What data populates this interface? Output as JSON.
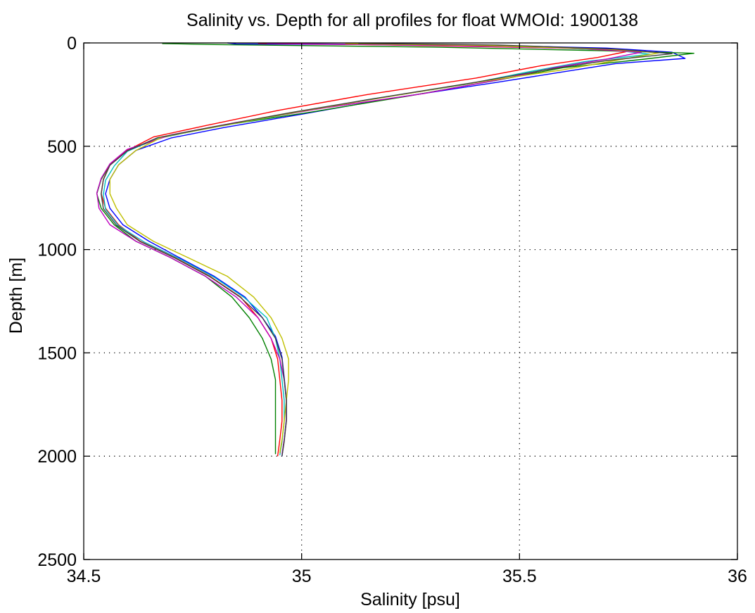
{
  "chart_data": {
    "type": "line",
    "title": "Salinity vs. Depth for all profiles for float WMOId: 1900138",
    "xlabel": "Salinity [psu]",
    "ylabel": "Depth [m]",
    "xlim": [
      34.5,
      36
    ],
    "ylim": [
      0,
      2500
    ],
    "y_reversed": true,
    "grid": true,
    "x_ticks": [
      34.5,
      35,
      35.5,
      36
    ],
    "x_tick_labels": [
      "34.5",
      "35",
      "35.5",
      "36"
    ],
    "y_ticks": [
      0,
      500,
      1000,
      1500,
      2000,
      2500
    ],
    "y_tick_labels": [
      "0",
      "500",
      "1000",
      "1500",
      "2000",
      "2500"
    ],
    "series": [
      {
        "color": "#0000ff",
        "points": [
          [
            34.83,
            0
          ],
          [
            34.85,
            5
          ],
          [
            35.4,
            10
          ],
          [
            35.7,
            25
          ],
          [
            35.85,
            45
          ],
          [
            35.88,
            75
          ],
          [
            35.72,
            100
          ],
          [
            35.6,
            140
          ],
          [
            35.45,
            190
          ],
          [
            35.2,
            270
          ],
          [
            35.0,
            345
          ],
          [
            34.82,
            410
          ],
          [
            34.7,
            460
          ],
          [
            34.62,
            520
          ],
          [
            34.58,
            590
          ],
          [
            34.56,
            660
          ],
          [
            34.55,
            730
          ],
          [
            34.56,
            800
          ],
          [
            34.59,
            880
          ],
          [
            34.65,
            960
          ],
          [
            34.72,
            1040
          ],
          [
            34.8,
            1130
          ],
          [
            34.87,
            1230
          ],
          [
            34.91,
            1330
          ],
          [
            34.94,
            1420
          ],
          [
            34.955,
            1520
          ],
          [
            34.96,
            1620
          ],
          [
            34.965,
            1720
          ],
          [
            34.965,
            1820
          ],
          [
            34.96,
            1920
          ],
          [
            34.955,
            2000
          ]
        ]
      },
      {
        "color": "#008000",
        "points": [
          [
            34.68,
            3
          ],
          [
            34.8,
            8
          ],
          [
            35.3,
            20
          ],
          [
            35.7,
            38
          ],
          [
            35.9,
            50
          ],
          [
            35.78,
            80
          ],
          [
            35.6,
            120
          ],
          [
            35.45,
            180
          ],
          [
            35.25,
            255
          ],
          [
            35.02,
            335
          ],
          [
            34.8,
            405
          ],
          [
            34.68,
            458
          ],
          [
            34.6,
            520
          ],
          [
            34.56,
            590
          ],
          [
            34.54,
            660
          ],
          [
            34.53,
            730
          ],
          [
            34.54,
            800
          ],
          [
            34.57,
            880
          ],
          [
            34.62,
            960
          ],
          [
            34.7,
            1040
          ],
          [
            34.78,
            1130
          ],
          [
            34.84,
            1230
          ],
          [
            34.88,
            1330
          ],
          [
            34.91,
            1430
          ],
          [
            34.93,
            1530
          ],
          [
            34.94,
            1630
          ],
          [
            34.94,
            1730
          ],
          [
            34.94,
            1830
          ],
          [
            34.94,
            1920
          ],
          [
            34.94,
            1990
          ]
        ]
      },
      {
        "color": "#ff0000",
        "points": [
          [
            34.9,
            2
          ],
          [
            35.2,
            10
          ],
          [
            35.6,
            25
          ],
          [
            35.75,
            40
          ],
          [
            35.68,
            70
          ],
          [
            35.55,
            110
          ],
          [
            35.4,
            170
          ],
          [
            35.15,
            250
          ],
          [
            34.95,
            325
          ],
          [
            34.78,
            400
          ],
          [
            34.66,
            455
          ],
          [
            34.6,
            520
          ],
          [
            34.56,
            590
          ],
          [
            34.545,
            660
          ],
          [
            34.54,
            730
          ],
          [
            34.55,
            800
          ],
          [
            34.58,
            880
          ],
          [
            34.63,
            960
          ],
          [
            34.71,
            1040
          ],
          [
            34.79,
            1130
          ],
          [
            34.86,
            1230
          ],
          [
            34.9,
            1330
          ],
          [
            34.93,
            1430
          ],
          [
            34.945,
            1530
          ],
          [
            34.95,
            1630
          ],
          [
            34.955,
            1730
          ],
          [
            34.955,
            1830
          ],
          [
            34.95,
            1920
          ],
          [
            34.945,
            2000
          ]
        ]
      },
      {
        "color": "#00bfbf",
        "points": [
          [
            34.95,
            1
          ],
          [
            35.1,
            6
          ],
          [
            35.5,
            18
          ],
          [
            35.72,
            35
          ],
          [
            35.8,
            55
          ],
          [
            35.65,
            90
          ],
          [
            35.52,
            140
          ],
          [
            35.38,
            200
          ],
          [
            35.15,
            275
          ],
          [
            34.98,
            340
          ],
          [
            34.8,
            408
          ],
          [
            34.67,
            460
          ],
          [
            34.6,
            525
          ],
          [
            34.57,
            595
          ],
          [
            34.55,
            665
          ],
          [
            34.545,
            735
          ],
          [
            34.55,
            805
          ],
          [
            34.58,
            885
          ],
          [
            34.64,
            965
          ],
          [
            34.72,
            1045
          ],
          [
            34.8,
            1135
          ],
          [
            34.87,
            1235
          ],
          [
            34.92,
            1330
          ],
          [
            34.94,
            1430
          ],
          [
            34.95,
            1530
          ],
          [
            34.955,
            1630
          ],
          [
            34.96,
            1730
          ],
          [
            34.96,
            1830
          ],
          [
            34.955,
            1930
          ],
          [
            34.95,
            1995
          ]
        ]
      },
      {
        "color": "#bf00bf",
        "points": [
          [
            34.92,
            2
          ],
          [
            35.3,
            12
          ],
          [
            35.65,
            28
          ],
          [
            35.78,
            45
          ],
          [
            35.7,
            78
          ],
          [
            35.58,
            120
          ],
          [
            35.46,
            175
          ],
          [
            35.28,
            245
          ],
          [
            35.05,
            315
          ],
          [
            34.85,
            385
          ],
          [
            34.7,
            445
          ],
          [
            34.6,
            515
          ],
          [
            34.56,
            585
          ],
          [
            34.54,
            655
          ],
          [
            34.53,
            725
          ],
          [
            34.535,
            800
          ],
          [
            34.56,
            880
          ],
          [
            34.62,
            960
          ],
          [
            34.7,
            1040
          ],
          [
            34.78,
            1130
          ],
          [
            34.85,
            1230
          ],
          [
            34.9,
            1330
          ],
          [
            34.93,
            1430
          ],
          [
            34.95,
            1530
          ],
          [
            34.96,
            1630
          ],
          [
            34.965,
            1730
          ],
          [
            34.965,
            1830
          ],
          [
            34.96,
            1920
          ],
          [
            34.955,
            1990
          ]
        ]
      },
      {
        "color": "#bfbf00",
        "points": [
          [
            35.1,
            3
          ],
          [
            35.4,
            12
          ],
          [
            35.7,
            30
          ],
          [
            35.82,
            48
          ],
          [
            35.72,
            85
          ],
          [
            35.6,
            130
          ],
          [
            35.42,
            185
          ],
          [
            35.2,
            260
          ],
          [
            35.0,
            330
          ],
          [
            34.82,
            400
          ],
          [
            34.68,
            455
          ],
          [
            34.62,
            520
          ],
          [
            34.58,
            590
          ],
          [
            34.56,
            660
          ],
          [
            34.56,
            730
          ],
          [
            34.575,
            800
          ],
          [
            34.6,
            880
          ],
          [
            34.66,
            960
          ],
          [
            34.74,
            1040
          ],
          [
            34.83,
            1130
          ],
          [
            34.89,
            1230
          ],
          [
            34.93,
            1330
          ],
          [
            34.955,
            1430
          ],
          [
            34.97,
            1530
          ],
          [
            34.97,
            1630
          ],
          [
            34.965,
            1730
          ],
          [
            34.96,
            1830
          ],
          [
            34.955,
            1920
          ],
          [
            34.95,
            1985
          ]
        ]
      },
      {
        "color": "#404040",
        "points": [
          [
            35.13,
            2
          ],
          [
            35.45,
            10
          ],
          [
            35.72,
            30
          ],
          [
            35.85,
            52
          ],
          [
            35.7,
            85
          ],
          [
            35.56,
            130
          ],
          [
            35.4,
            190
          ],
          [
            35.18,
            265
          ],
          [
            34.98,
            335
          ],
          [
            34.8,
            405
          ],
          [
            34.67,
            458
          ],
          [
            34.6,
            522
          ],
          [
            34.56,
            592
          ],
          [
            34.545,
            662
          ],
          [
            34.54,
            732
          ],
          [
            34.545,
            802
          ],
          [
            34.575,
            882
          ],
          [
            34.63,
            962
          ],
          [
            34.71,
            1042
          ],
          [
            34.79,
            1132
          ],
          [
            34.86,
            1232
          ],
          [
            34.91,
            1330
          ],
          [
            34.94,
            1430
          ],
          [
            34.955,
            1530
          ],
          [
            34.96,
            1630
          ],
          [
            34.965,
            1730
          ],
          [
            34.965,
            1830
          ],
          [
            34.96,
            1930
          ],
          [
            34.955,
            2000
          ]
        ]
      }
    ]
  }
}
